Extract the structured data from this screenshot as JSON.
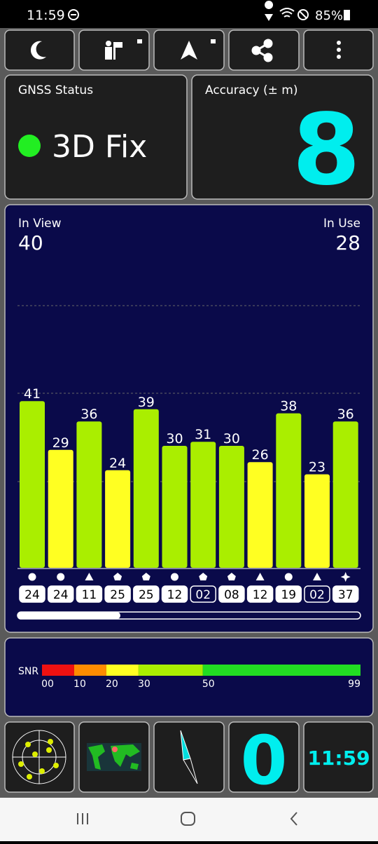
{
  "status_bar": {
    "time": "11:59",
    "battery": "85%"
  },
  "gnss_status": {
    "title": "GNSS Status",
    "fix": "3D Fix"
  },
  "accuracy": {
    "title": "Accuracy (± m)",
    "value": 8
  },
  "signal_chart": {
    "in_view_label": "In View",
    "in_view": 40,
    "in_use_label": "In Use",
    "in_use": 28,
    "values": [
      41,
      29,
      36,
      24,
      39,
      30,
      31,
      30,
      26,
      38,
      23,
      36
    ],
    "ids": [
      "24",
      "24",
      "11",
      "25",
      "25",
      "12",
      "02",
      "08",
      "12",
      "19",
      "02",
      "37"
    ],
    "shapes": [
      "circle",
      "circle",
      "triangle",
      "pentagon",
      "pentagon",
      "circle",
      "pentagon",
      "pentagon",
      "triangle",
      "circle",
      "triangle",
      "star"
    ],
    "used": [
      true,
      true,
      true,
      true,
      true,
      true,
      false,
      true,
      true,
      true,
      false,
      true
    ]
  },
  "snr_scale": {
    "title": "SNR",
    "ticks": [
      {
        "value": 0,
        "label": "00"
      },
      {
        "value": 10,
        "label": "10"
      },
      {
        "value": 20,
        "label": "20"
      },
      {
        "value": 30,
        "label": "30"
      },
      {
        "value": 50,
        "label": "50"
      },
      {
        "value": 99,
        "label": "99"
      }
    ],
    "colors": [
      "#ee1111",
      "#ff8c00",
      "#ffff22",
      "#aaee00",
      "#22dd22"
    ]
  },
  "tiles": {
    "heading": "0",
    "clock": "11:59"
  }
}
